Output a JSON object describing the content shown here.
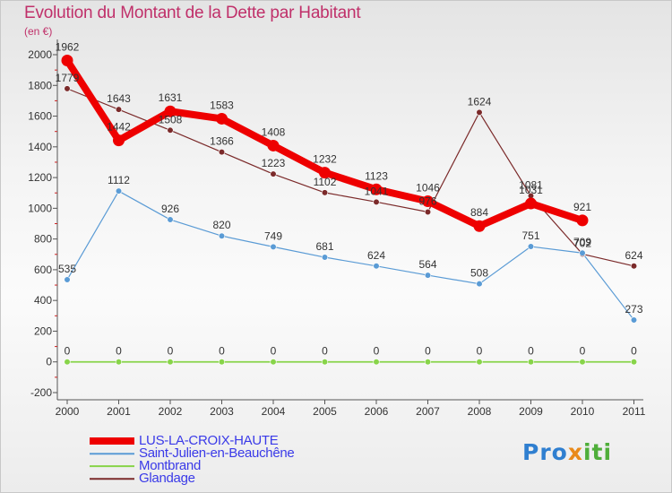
{
  "title": "Evolution du Montant de la Dette par Habitant",
  "unit": "(en €)",
  "logo": {
    "text": "Proxiti",
    "parts": [
      "Pro",
      "x",
      "iti"
    ]
  },
  "chart_data": {
    "type": "line",
    "title": "Evolution du Montant de la Dette par Habitant",
    "ylabel": "(en €)",
    "xlabel": "",
    "ylim": [
      -200,
      2000
    ],
    "yticks": [
      -200,
      0,
      200,
      400,
      600,
      800,
      1000,
      1200,
      1400,
      1600,
      1800,
      2000
    ],
    "x": [
      "2000",
      "2001",
      "2002",
      "2003",
      "2004",
      "2005",
      "2006",
      "2007",
      "2008",
      "2009",
      "2010",
      "2011"
    ],
    "grid": false,
    "legend_position": "bottom-left",
    "series": [
      {
        "name": "Glandage",
        "color": "#7b2a2a",
        "values": [
          1779,
          1643,
          1508,
          1366,
          1223,
          1102,
          1041,
          976,
          1624,
          1081,
          702,
          624
        ]
      },
      {
        "name": "Saint-Julien-en-Beauchêne",
        "color": "#5a9bd5",
        "values": [
          535,
          1112,
          926,
          820,
          749,
          681,
          624,
          564,
          508,
          751,
          709,
          273
        ]
      },
      {
        "name": "Montbrand",
        "color": "#88d44a",
        "values": [
          0,
          0,
          0,
          0,
          0,
          0,
          0,
          0,
          0,
          0,
          0,
          0
        ]
      },
      {
        "name": "LUS-LA-CROIX-HAUTE",
        "color": "#ee0000",
        "values": [
          1962,
          1442,
          1631,
          1583,
          1408,
          1232,
          1123,
          1046,
          884,
          1031,
          921,
          null
        ]
      }
    ],
    "legend": [
      "LUS-LA-CROIX-HAUTE",
      "Saint-Julien-en-Beauchêne",
      "Montbrand",
      "Glandage"
    ]
  }
}
